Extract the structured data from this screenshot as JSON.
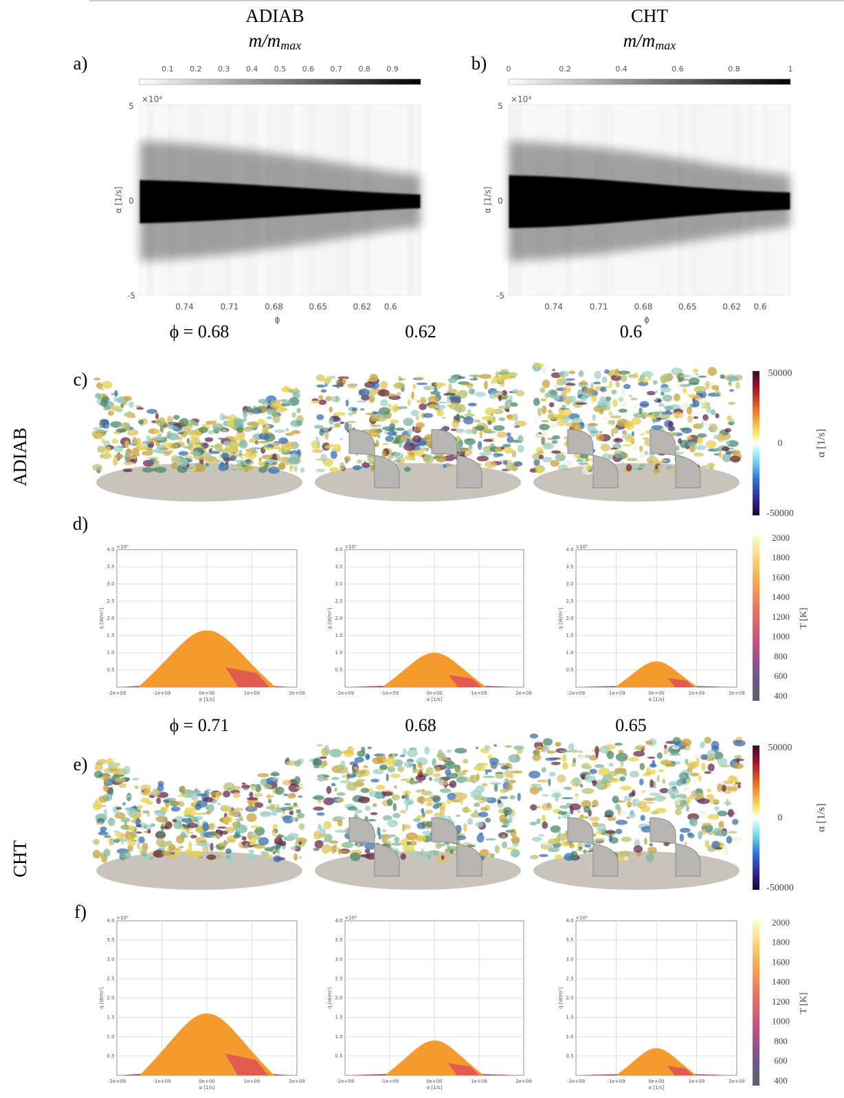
{
  "columns": [
    {
      "title": "ADIAB",
      "subtitle_main": "m/m",
      "subtitle_sub": "max"
    },
    {
      "title": "CHT",
      "subtitle_main": "m/m",
      "subtitle_sub": "max"
    }
  ],
  "histograms": [
    {
      "label": "a)",
      "colorbar_ticks": [
        "0.1",
        "0.2",
        "0.3",
        "0.4",
        "0.5",
        "0.6",
        "0.7",
        "0.8",
        "0.9"
      ],
      "y_exponent": "×10⁴",
      "yticks": [
        "5",
        "0",
        "-5"
      ],
      "xticks": [
        "0.74",
        "0.71",
        "0.68",
        "0.65",
        "0.62",
        "0.6"
      ],
      "xlabel": "ϕ",
      "ylabel": "α [1/s]"
    },
    {
      "label": "b)",
      "colorbar_ticks": [
        "0",
        "0.2",
        "0.4",
        "0.6",
        "0.8",
        "1"
      ],
      "y_exponent": "×10⁴",
      "yticks": [
        "5",
        "0",
        "-5"
      ],
      "xticks": [
        "0.74",
        "0.71",
        "0.68",
        "0.65",
        "0.62",
        "0.6"
      ],
      "xlabel": "ϕ",
      "ylabel": "α [1/s]"
    }
  ],
  "row_labels": [
    "ADIAB",
    "CHT"
  ],
  "rows": [
    {
      "phi_labels": [
        "ϕ = 0.68",
        "0.62",
        "0.6"
      ],
      "render": {
        "label": "c)",
        "colorbar_ticks": [
          "50000",
          "0",
          "-50000"
        ],
        "colorbar_label": "α [1/s]"
      },
      "scatter": {
        "label": "d)",
        "y_exponent": "×10⁶",
        "yticks": [
          "0.5",
          "1.0",
          "1.5",
          "2.0",
          "2.5",
          "3.0",
          "3.5",
          "4.0"
        ],
        "xticks": [
          "-2e+09",
          "-1e+09",
          "0e+00",
          "1e+09",
          "2e+09"
        ],
        "xlabel": "α [1/s]",
        "ylabel": "q̇ [W/m²]",
        "colorbar_ticks": [
          "2000",
          "1800",
          "1600",
          "1400",
          "1200",
          "1000",
          "800",
          "600",
          "400"
        ],
        "colorbar_label": "T [K]"
      }
    },
    {
      "phi_labels": [
        "ϕ = 0.71",
        "0.68",
        "0.65"
      ],
      "render": {
        "label": "e)",
        "colorbar_ticks": [
          "50000",
          "0",
          "-50000"
        ],
        "colorbar_label": "α [1/s]"
      },
      "scatter": {
        "label": "f)",
        "y_exponent": "×10⁶",
        "yticks": [
          "0.5",
          "1.0",
          "1.5",
          "2.0",
          "2.5",
          "3.0",
          "3.5",
          "4.0"
        ],
        "xticks": [
          "-2e+09",
          "-1e+09",
          "0e+00",
          "1e+09",
          "2e+09"
        ],
        "xlabel": "α [1/s]",
        "ylabel": "q̇ [W/m²]",
        "colorbar_ticks": [
          "2000",
          "1800",
          "1600",
          "1400",
          "1200",
          "1000",
          "800",
          "600",
          "400"
        ],
        "colorbar_label": "T [K]"
      }
    }
  ]
}
